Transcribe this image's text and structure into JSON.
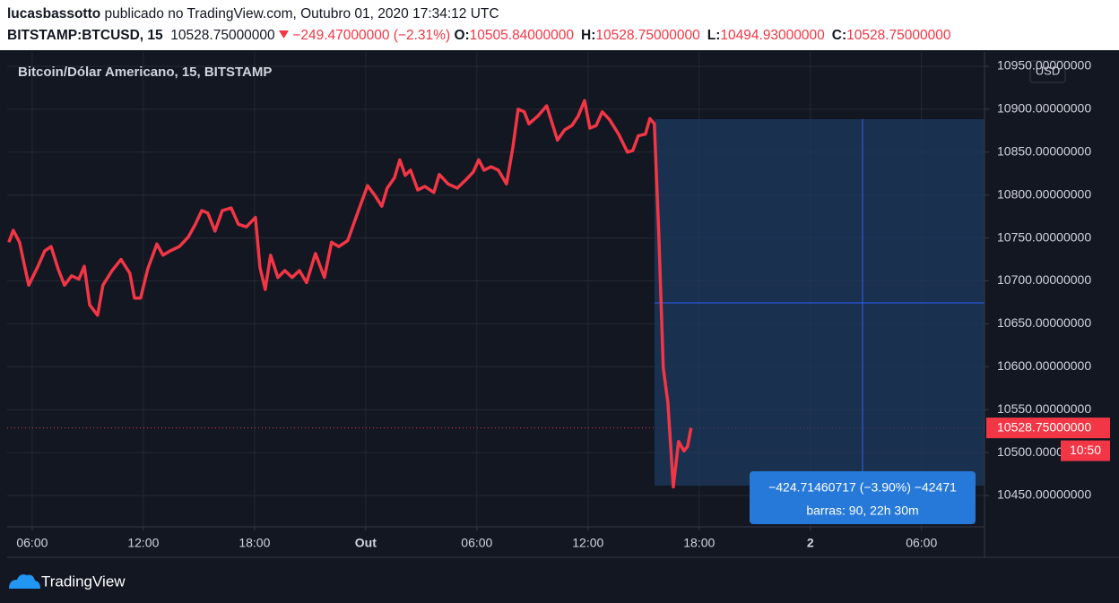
{
  "header": {
    "author": "lucasbassotto",
    "published": "publicado no TradingView.com, Outubro 01, 2020 17:34:12 UTC",
    "symbol": "BITSTAMP:BTCUSD, 15",
    "last": "10528.75000000",
    "change": "−249.47000000 (−2.31%)",
    "ohlc": [
      {
        "label": "O:",
        "value": "10505.84000000"
      },
      {
        "label": "H:",
        "value": "10528.75000000"
      },
      {
        "label": "L:",
        "value": "10494.93000000"
      },
      {
        "label": "C:",
        "value": "10528.75000000"
      }
    ]
  },
  "chart_data": {
    "type": "line",
    "title": "Bitcoin/Dólar Americano, 15, BITSTAMP",
    "currency": "USD",
    "color": "#f23645",
    "x": [
      4.74,
      4.98,
      5.32,
      5.81,
      6.29,
      6.68,
      7.02,
      7.4,
      7.74,
      8.13,
      8.52,
      8.81,
      9.1,
      9.53,
      9.82,
      10.31,
      10.79,
      11.27,
      11.52,
      11.85,
      12.24,
      12.73,
      13.06,
      13.45,
      13.94,
      14.42,
      14.81,
      15.15,
      15.48,
      15.87,
      16.26,
      16.74,
      17.13,
      17.56,
      18.05,
      18.29,
      18.58,
      18.87,
      19.26,
      19.64,
      20.03,
      20.42,
      20.81,
      21.29,
      21.77,
      22.16,
      22.55,
      23.03,
      23.61,
      24.1,
      24.48,
      24.87,
      25.16,
      25.55,
      25.84,
      26.13,
      26.42,
      26.81,
      27.19,
      27.68,
      27.97,
      28.45,
      28.94,
      29.42,
      29.81,
      30.1,
      30.39,
      30.77,
      31.16,
      31.6,
      31.94,
      32.23,
      32.56,
      32.81,
      33.29,
      33.77,
      34.35,
      34.74,
      35.13,
      35.47,
      35.81,
      36.1,
      36.44,
      36.77,
      37.16,
      37.65,
      38.13,
      38.42,
      38.71,
      39.1,
      39.34,
      39.58,
      39.82,
      40.06,
      40.31,
      40.6,
      40.89,
      41.18,
      41.37,
      41.56
    ],
    "values": [
      10745,
      10759,
      10745,
      10695,
      10716,
      10735,
      10740,
      10714,
      10695,
      10706,
      10702,
      10717,
      10672,
      10660,
      10695,
      10712,
      10725,
      10709,
      10680,
      10680,
      10714,
      10743,
      10730,
      10735,
      10740,
      10751,
      10766,
      10782,
      10779,
      10758,
      10782,
      10785,
      10766,
      10763,
      10774,
      10716,
      10690,
      10730,
      10704,
      10712,
      10704,
      10712,
      10698,
      10732,
      10704,
      10745,
      10740,
      10747,
      10782,
      10811,
      10800,
      10787,
      10808,
      10820,
      10841,
      10823,
      10829,
      10806,
      10810,
      10803,
      10824,
      10813,
      10808,
      10818,
      10827,
      10841,
      10829,
      10833,
      10829,
      10813,
      10855,
      10900,
      10897,
      10883,
      10892,
      10904,
      10864,
      10876,
      10881,
      10892,
      10910,
      10878,
      10881,
      10897,
      10888,
      10871,
      10850,
      10852,
      10869,
      10871,
      10889,
      10883,
      10756,
      10599,
      10558,
      10460,
      10513,
      10502,
      10507,
      10528.75
    ],
    "xlim": [
      4.65,
      57.4
    ],
    "xticks": [
      {
        "value": 6,
        "label": "06:00"
      },
      {
        "value": 12,
        "label": "12:00"
      },
      {
        "value": 18,
        "label": "18:00"
      },
      {
        "value": 24,
        "label": "Out"
      },
      {
        "value": 30,
        "label": "06:00"
      },
      {
        "value": 36,
        "label": "12:00"
      },
      {
        "value": 42,
        "label": "18:00"
      },
      {
        "value": 48,
        "label": "2"
      },
      {
        "value": 54,
        "label": "06:00"
      }
    ],
    "ylim": [
      10413.5,
      10966.7
    ],
    "yticks": [
      {
        "value": 10450,
        "label": "10450.00000000"
      },
      {
        "value": 10500,
        "label": "10500.00000000"
      },
      {
        "value": 10550,
        "label": "10550.00000000"
      },
      {
        "value": 10600,
        "label": "10600.00000000"
      },
      {
        "value": 10650,
        "label": "10650.00000000"
      },
      {
        "value": 10700,
        "label": "10700.00000000"
      },
      {
        "value": 10750,
        "label": "10750.00000000"
      },
      {
        "value": 10800,
        "label": "10800.00000000"
      },
      {
        "value": 10850,
        "label": "10850.00000000"
      },
      {
        "value": 10900,
        "label": "10900.00000000"
      },
      {
        "value": 10950,
        "label": "10950.00000000"
      }
    ],
    "grid": true,
    "last_price": {
      "value": 10528.75,
      "label": "10528.75000000"
    },
    "countdown": "10:50",
    "measure": {
      "text": "−424.71460717 (−3.90%) −42471",
      "bars": "barras: 90, 22h 30m"
    }
  },
  "footer": {
    "brand": "TradingView"
  }
}
